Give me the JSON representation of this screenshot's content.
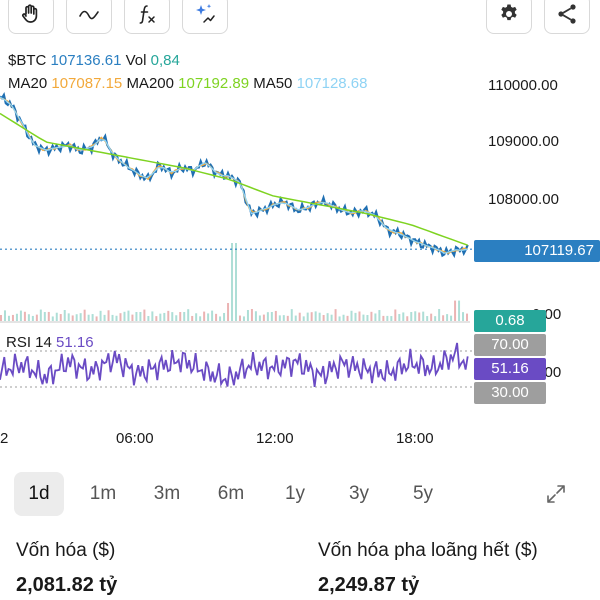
{
  "toolbar": {
    "left_tools": [
      {
        "icon": "hand-icon"
      },
      {
        "icon": "wave-icon"
      },
      {
        "icon": "function-icon"
      },
      {
        "icon": "sparkle-icon"
      }
    ],
    "right_tools": [
      {
        "icon": "gear-icon"
      },
      {
        "icon": "share-icon"
      }
    ]
  },
  "legend": {
    "symbol": "$BTC",
    "price": "107136.61",
    "vol_label": "Vol",
    "vol_value": "0,84",
    "ma20_label": "MA20",
    "ma20_value": "107087.15",
    "ma200_label": "MA200",
    "ma200_value": "107192.89",
    "ma50_label": "MA50",
    "ma50_value": "107128.68",
    "rsi_label": "RSI 14",
    "rsi_value": "51.16"
  },
  "colors": {
    "price_line": "#1f6fb2",
    "ma20": "#f2a93b",
    "ma200": "#7ed321",
    "ma50": "#8fd3f4",
    "rsi": "#6a4bc4",
    "current_badge": "#2b7fc1",
    "vol_badge": "#26a69a",
    "rsi_badge": "#6a4bc4",
    "level_badge": "#9e9e9e"
  },
  "price_axis": {
    "ticks": [
      "110000.00",
      "109000.00",
      "108000.00"
    ],
    "current": "107119.67",
    "volume_axis_label": "0.00",
    "rsi_axis_label": "0.00"
  },
  "badges": {
    "volume": "0.68",
    "rsi_upper": "70.00",
    "rsi_value": "51.16",
    "rsi_lower": "30.00"
  },
  "time_axis": [
    "2",
    "06:00",
    "12:00",
    "18:00"
  ],
  "timeframes": [
    {
      "label": "1d",
      "active": true
    },
    {
      "label": "1m",
      "active": false
    },
    {
      "label": "3m",
      "active": false
    },
    {
      "label": "6m",
      "active": false
    },
    {
      "label": "1y",
      "active": false
    },
    {
      "label": "3y",
      "active": false
    },
    {
      "label": "5y",
      "active": false
    }
  ],
  "expand_icon": "expand-icon",
  "market_cap": {
    "label": "Vốn hóa ($)",
    "value": "2,081.82 tỷ"
  },
  "diluted_cap": {
    "label": "Vốn hóa pha loãng hết ($)",
    "value": "2,249.87 tỷ"
  },
  "chart_data": {
    "type": "line",
    "y_ticks": [
      110000,
      109000,
      108000
    ],
    "x_ticks": [
      "2",
      "06:00",
      "12:00",
      "18:00"
    ],
    "price_series": {
      "x_hours": [
        0,
        0.5,
        1,
        1.5,
        2,
        2.5,
        3,
        3.5,
        4,
        4.5,
        5,
        5.5,
        6,
        6.5,
        7,
        7.5,
        8,
        8.5,
        9,
        9.5,
        10,
        10.5,
        11,
        11.5,
        12,
        12.5,
        13,
        13.5,
        14,
        14.5,
        15,
        15.5,
        16,
        16.5,
        17,
        17.5,
        18,
        18.5,
        19,
        19.5,
        20,
        20.5
      ],
      "values": [
        109800,
        109650,
        109300,
        108950,
        108850,
        108900,
        108950,
        108850,
        108900,
        109100,
        108750,
        108600,
        108450,
        108350,
        108600,
        108450,
        108550,
        108500,
        108650,
        108450,
        108400,
        108300,
        107750,
        107800,
        107900,
        107950,
        107800,
        107850,
        107950,
        107900,
        107800,
        107750,
        107800,
        107700,
        107450,
        107400,
        107300,
        107200,
        107150,
        107050,
        107100,
        107120
      ]
    },
    "ma200": {
      "x_hours": [
        0,
        2,
        4,
        6,
        8,
        10,
        12,
        14,
        16,
        18,
        20.5
      ],
      "values": [
        109500,
        109000,
        108850,
        108700,
        108550,
        108350,
        108050,
        107900,
        107750,
        107550,
        107190
      ]
    },
    "rsi": {
      "levels": [
        70,
        30
      ],
      "x_hours": [
        0,
        1,
        2,
        3,
        4,
        5,
        6,
        7,
        8,
        9,
        10,
        11,
        12,
        13,
        14,
        15,
        16,
        17,
        18,
        19,
        20,
        20.5
      ],
      "values": [
        48,
        55,
        40,
        58,
        46,
        62,
        44,
        53,
        60,
        47,
        38,
        55,
        51,
        58,
        42,
        56,
        49,
        45,
        57,
        50,
        67,
        51
      ]
    },
    "volume": {
      "x_hours": [
        0,
        2,
        4,
        6,
        8,
        10,
        10.2,
        11,
        12,
        14,
        16,
        18,
        20
      ],
      "values": [
        0.2,
        0.3,
        0.2,
        0.3,
        0.3,
        0.6,
        2.6,
        0.4,
        0.3,
        0.2,
        0.2,
        0.3,
        0.68
      ]
    }
  }
}
